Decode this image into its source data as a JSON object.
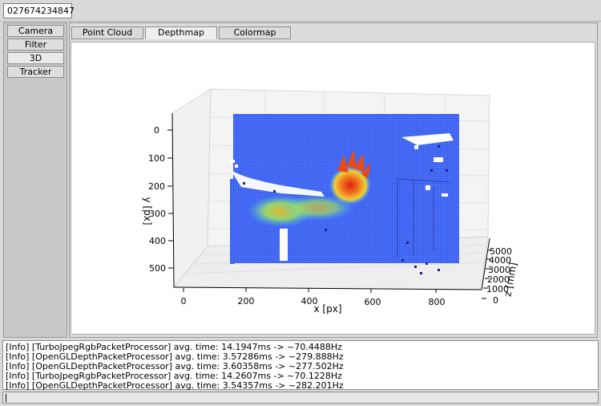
{
  "serial": "027674234847",
  "sidebar": {
    "items": [
      {
        "label": "Camera"
      },
      {
        "label": "Filter"
      },
      {
        "label": "3D"
      },
      {
        "label": "Tracker"
      }
    ]
  },
  "tabs": [
    {
      "label": "Point Cloud"
    },
    {
      "label": "Depthmap"
    },
    {
      "label": "Colormap"
    }
  ],
  "plot": {
    "xlabel": "x [px]",
    "ylabel": "y [px]",
    "zlabel": "z [mm]",
    "xticks": [
      "0",
      "200",
      "400",
      "600",
      "800"
    ],
    "yticks": [
      "0",
      "100",
      "200",
      "300",
      "400",
      "500"
    ],
    "zticks": [
      "0",
      "1000",
      "2000",
      "3000",
      "4000",
      "5000"
    ]
  },
  "log": {
    "lines": [
      "[Info] [TurboJpegRgbPacketProcessor] avg. time: 14.1947ms -> ~70.4488Hz",
      "[Info] [OpenGLDepthPacketProcessor] avg. time: 3.57286ms -> ~279.888Hz",
      "[Info] [OpenGLDepthPacketProcessor] avg. time: 3.60358ms -> ~277.502Hz",
      "[Info] [TurboJpegRgbPacketProcessor] avg. time: 14.2607ms -> ~70.1228Hz",
      "[Info] [OpenGLDepthPacketProcessor] avg. time: 3.54357ms -> ~282.201Hz"
    ]
  }
}
